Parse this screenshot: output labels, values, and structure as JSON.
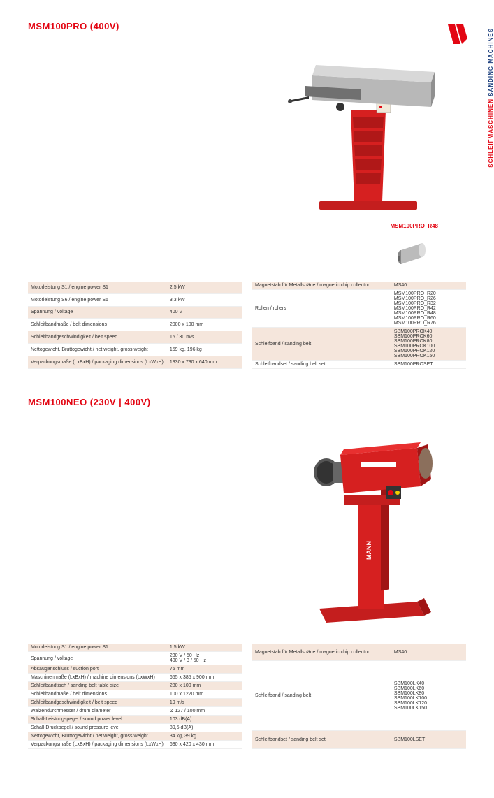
{
  "sideTab": {
    "de": "SCHLEIFMASCHINEN",
    "en": "SANDING MACHINES"
  },
  "product1": {
    "title": "MSM100PRO (400V)",
    "accessoryLabel": "MSM100PRO_R48",
    "specs": [
      {
        "label": "Motorleistung S1 / engine power S1",
        "value": "2,5 kW"
      },
      {
        "label": "Motorleistung S6 / engine power S6",
        "value": "3,3 kW"
      },
      {
        "label": "Spannung / voltage",
        "value": "400 V"
      },
      {
        "label": "Schleifbandmaße / belt dimensions",
        "value": "2000 x 100 mm"
      },
      {
        "label": "Schleifbandgeschwindigkeit / belt speed",
        "value": "15 / 30 m/s"
      },
      {
        "label": "Nettogewicht, Bruttogewicht / net weight, gross weight",
        "value": "159 kg, 196 kg"
      },
      {
        "label": "Verpackungsmaße (LxBxH) / packaging dimensions (LxWxH)",
        "value": "1330 x 730 x 640 mm"
      }
    ],
    "accessories": [
      {
        "label": "Magnetstab für Metallspäne / magnetic chip collector",
        "value": "MS40"
      },
      {
        "label": "Rollen / rollers",
        "value": "MSM100PRO_R20\nMSM100PRO_R26\nMSM100PRO_R32\nMSM100PRO_R42\nMSM100PRO_R48\nMSM100PRO_R60\nMSM100PRO_R76"
      },
      {
        "label": "Schleifband / sanding belt",
        "value": "SBM100PROK40\nSBM100PROK60\nSBM100PROK80\nSBM100PROK100\nSBM100PROK120\nSBM100PROK150"
      },
      {
        "label": "Schleifbandset / sanding belt set",
        "value": "SBM100PROSET"
      }
    ]
  },
  "product2": {
    "title": "MSM100NEO (230V | 400V)",
    "specs": [
      {
        "label": "Motorleistung S1 / engine power S1",
        "value": "1,5 kW"
      },
      {
        "label": "Spannung / voltage",
        "value": "230 V / 50 Hz\n400 V / 3 / 50 Hz"
      },
      {
        "label": "Absauganschluss / suction port",
        "value": "75 mm"
      },
      {
        "label": "Maschinenmaße (LxBxH) / machine dimensions (LxWxH)",
        "value": "655 x 385 x 900 mm"
      },
      {
        "label": "Schleifbandtisch / sanding belt table size",
        "value": "280 x 100 mm"
      },
      {
        "label": "Schleifbandmaße / belt dimensions",
        "value": "100 x 1220 mm"
      },
      {
        "label": "Schleifbandgeschwindigkeit / belt speed",
        "value": "19 m/s"
      },
      {
        "label": "Walzendurchmesser / drum diameter",
        "value": "Ø 127 / 100 mm"
      },
      {
        "label": "Schall-Leistungspegel / sound power level",
        "value": "103 dB(A)"
      },
      {
        "label": "Schall-Druckpegel / sound pressure level",
        "value": "89,5 dB(A)"
      },
      {
        "label": "Nettogewicht, Bruttogewicht / net weight, gross weight",
        "value": "34 kg, 39 kg"
      },
      {
        "label": "Verpackungsmaße (LxBxH) / packaging dimensions (LxWxH)",
        "value": "630 x 420 x 430 mm"
      }
    ],
    "accessories": [
      {
        "label": "Magnetstab für Metallspäne / magnetic chip collector",
        "value": "MS40"
      },
      {
        "label": "Schleifband / sanding belt",
        "value": "SBM100LK40\nSBM100LK60\nSBM100LK80\nSBM100LK100\nSBM100LK120\nSBM100LK150"
      },
      {
        "label": "Schleifbandset / sanding belt set",
        "value": "SBM100LSET"
      }
    ]
  },
  "colors": {
    "red": "#e30613",
    "blue": "#1a3d7c",
    "peach": "#f5e6dc"
  }
}
